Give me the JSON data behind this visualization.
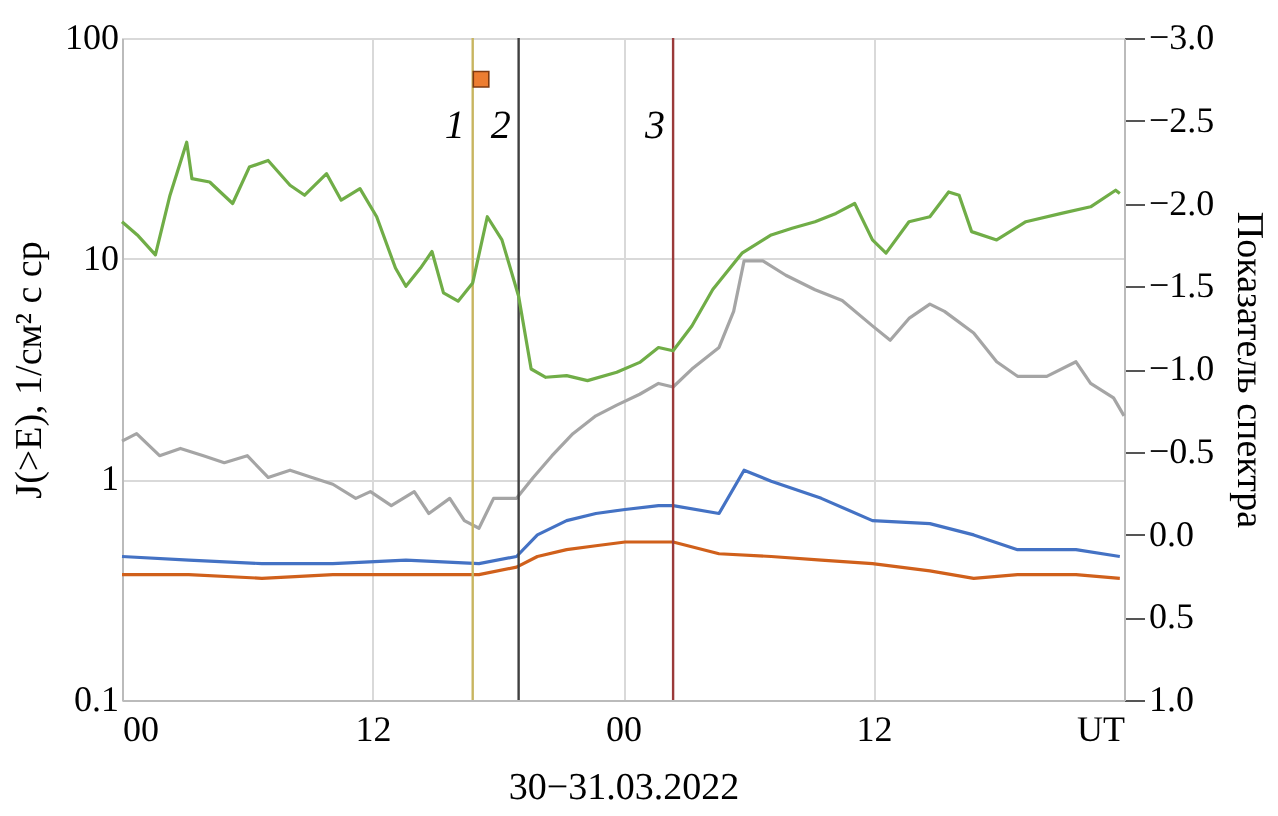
{
  "chart_data": {
    "type": "line",
    "xlabel": "30−31.03.2022",
    "ylabel": "J(>E), 1/см² с ср",
    "y2label": "Показатель спектра",
    "xlim": [
      "2022-03-30T00:00",
      "2022-04-01T00:00"
    ],
    "xticks": [
      {
        "value": "2022-03-30T00:00",
        "label": "00"
      },
      {
        "value": "2022-03-30T12:00",
        "label": "12"
      },
      {
        "value": "2022-03-31T00:00",
        "label": "00"
      },
      {
        "value": "2022-03-31T12:00",
        "label": "12"
      },
      {
        "value": "2022-04-01T00:00",
        "label": "UT"
      }
    ],
    "ylim": [
      0.1,
      100
    ],
    "yticks": [
      0.1,
      1,
      10,
      100
    ],
    "log": "y",
    "y2lim": [
      1.0,
      -3.0
    ],
    "y2ticks": [
      {
        "value": -3.0,
        "label": "−3.0"
      },
      {
        "value": -2.5,
        "label": "−2.5"
      },
      {
        "value": -2.0,
        "label": "−2.0"
      },
      {
        "value": -1.5,
        "label": "−1.5"
      },
      {
        "value": -1.0,
        "label": "−1.0"
      },
      {
        "value": -0.5,
        "label": "−0.5"
      },
      {
        "value": 0.0,
        "label": "0.0"
      },
      {
        "value": 0.5,
        "label": "0.5"
      },
      {
        "value": 1.0,
        "label": "1.0"
      }
    ],
    "grid": true,
    "line_style": "solid",
    "series": [
      {
        "color": "#70ad47",
        "axis": "y2",
        "x": [
          "2022-03-30T00:00",
          "2022-03-30T00:44",
          "2022-03-30T01:36",
          "2022-03-30T02:18",
          "2022-03-30T03:06",
          "2022-03-30T03:21",
          "2022-03-30T04:12",
          "2022-03-30T05:18",
          "2022-03-30T06:06",
          "2022-03-30T07:00",
          "2022-03-30T08:03",
          "2022-03-30T08:45",
          "2022-03-30T09:48",
          "2022-03-30T10:30",
          "2022-03-30T11:24",
          "2022-03-30T12:12",
          "2022-03-30T13:06",
          "2022-03-30T13:36",
          "2022-03-30T14:18",
          "2022-03-30T14:51",
          "2022-03-30T15:24",
          "2022-03-30T16:06",
          "2022-03-30T16:48",
          "2022-03-30T17:30",
          "2022-03-30T18:12",
          "2022-03-30T19:00",
          "2022-03-30T19:36",
          "2022-03-30T20:18",
          "2022-03-30T21:18",
          "2022-03-30T22:18",
          "2022-03-30T23:42",
          "2022-03-31T00:48",
          "2022-03-31T01:42",
          "2022-03-31T02:24",
          "2022-03-31T03:18",
          "2022-03-31T04:18",
          "2022-03-31T05:42",
          "2022-03-31T07:06",
          "2022-03-31T08:06",
          "2022-03-31T09:12",
          "2022-03-31T10:12",
          "2022-03-31T11:06",
          "2022-03-31T11:57",
          "2022-03-31T12:36",
          "2022-03-31T13:42",
          "2022-03-31T14:42",
          "2022-03-31T15:36",
          "2022-03-31T16:06",
          "2022-03-31T16:42",
          "2022-03-31T17:54",
          "2022-03-31T19:18",
          "2022-03-31T21:00",
          "2022-03-31T22:24",
          "2022-03-31T23:36",
          "2022-03-31T23:48"
        ],
        "values": [
          -1.89,
          -1.81,
          -1.69,
          -2.05,
          -2.37,
          -2.15,
          -2.13,
          -2.0,
          -2.22,
          -2.26,
          -2.11,
          -2.05,
          -2.18,
          -2.02,
          -2.09,
          -1.92,
          -1.61,
          -1.5,
          -1.61,
          -1.71,
          -1.46,
          -1.41,
          -1.52,
          -1.92,
          -1.78,
          -1.44,
          -1.0,
          -0.95,
          -0.96,
          -0.93,
          -0.98,
          -1.04,
          -1.13,
          -1.11,
          -1.26,
          -1.48,
          -1.7,
          -1.81,
          -1.85,
          -1.89,
          -1.94,
          -2.0,
          -1.78,
          -1.7,
          -1.89,
          -1.92,
          -2.07,
          -2.05,
          -1.83,
          -1.78,
          -1.89,
          -1.94,
          -1.98,
          -2.08,
          -2.06
        ]
      },
      {
        "color": "#a5a5a5",
        "x": [
          "2022-03-30T00:00",
          "2022-03-30T00:42",
          "2022-03-30T01:48",
          "2022-03-30T02:48",
          "2022-03-30T03:54",
          "2022-03-30T04:54",
          "2022-03-30T06:00",
          "2022-03-30T07:00",
          "2022-03-30T08:03",
          "2022-03-30T09:06",
          "2022-03-30T10:06",
          "2022-03-30T11:12",
          "2022-03-30T11:54",
          "2022-03-30T12:54",
          "2022-03-30T14:00",
          "2022-03-30T14:42",
          "2022-03-30T15:42",
          "2022-03-30T16:24",
          "2022-03-30T17:06",
          "2022-03-30T17:48",
          "2022-03-30T18:54",
          "2022-03-30T19:42",
          "2022-03-30T20:36",
          "2022-03-30T21:36",
          "2022-03-30T22:42",
          "2022-03-30T23:42",
          "2022-03-31T00:48",
          "2022-03-31T01:42",
          "2022-03-31T02:24",
          "2022-03-31T03:18",
          "2022-03-31T04:36",
          "2022-03-31T05:18",
          "2022-03-31T05:48",
          "2022-03-31T06:42",
          "2022-03-31T07:48",
          "2022-03-31T09:12",
          "2022-03-31T10:30",
          "2022-03-31T11:57",
          "2022-03-31T12:48",
          "2022-03-31T13:42",
          "2022-03-31T14:42",
          "2022-03-31T15:24",
          "2022-03-31T16:48",
          "2022-03-31T17:54",
          "2022-03-31T18:54",
          "2022-03-31T20:18",
          "2022-03-31T21:42",
          "2022-03-31T22:24",
          "2022-03-31T23:30",
          "2022-04-01T00:00"
        ],
        "values": [
          1.49,
          1.61,
          1.28,
          1.38,
          1.28,
          1.19,
          1.28,
          1.02,
          1.1,
          1.02,
          0.95,
          0.82,
          0.88,
          0.76,
          0.88,
          0.7,
          0.82,
          0.65,
          0.6,
          0.82,
          0.82,
          1.02,
          1.28,
          1.61,
          1.94,
          2.17,
          2.43,
          2.72,
          2.62,
          3.16,
          3.96,
          5.77,
          9.77,
          9.77,
          8.41,
          7.23,
          6.46,
          4.96,
          4.27,
          5.36,
          6.22,
          5.77,
          4.6,
          3.41,
          2.93,
          2.93,
          3.41,
          2.72,
          2.34,
          1.94
        ]
      },
      {
        "color": "#4472c4",
        "x": [
          "2022-03-30T00:00",
          "2022-03-30T03:12",
          "2022-03-30T06:42",
          "2022-03-30T10:06",
          "2022-03-30T13:36",
          "2022-03-30T17:06",
          "2022-03-30T18:54",
          "2022-03-30T19:54",
          "2022-03-30T21:18",
          "2022-03-30T22:42",
          "2022-03-31T00:06",
          "2022-03-31T01:42",
          "2022-03-31T02:24",
          "2022-03-31T04:36",
          "2022-03-31T05:48",
          "2022-03-31T07:06",
          "2022-03-31T09:30",
          "2022-03-31T11:57",
          "2022-03-31T14:42",
          "2022-03-31T16:48",
          "2022-03-31T18:54",
          "2022-03-31T21:42",
          "2022-03-31T23:48"
        ],
        "values": [
          0.447,
          0.43,
          0.415,
          0.415,
          0.43,
          0.415,
          0.447,
          0.56,
          0.65,
          0.7,
          0.73,
          0.76,
          0.76,
          0.7,
          1.1,
          0.98,
          0.82,
          0.65,
          0.63,
          0.56,
          0.48,
          0.48,
          0.447
        ]
      },
      {
        "color": "#d0601b",
        "x": [
          "2022-03-30T00:00",
          "2022-03-30T03:12",
          "2022-03-30T06:42",
          "2022-03-30T10:06",
          "2022-03-30T13:36",
          "2022-03-30T17:06",
          "2022-03-30T18:54",
          "2022-03-30T19:54",
          "2022-03-30T21:18",
          "2022-03-30T22:42",
          "2022-03-31T00:06",
          "2022-03-31T01:42",
          "2022-03-31T02:24",
          "2022-03-31T04:36",
          "2022-03-31T07:06",
          "2022-03-31T09:30",
          "2022-03-31T11:57",
          "2022-03-31T14:42",
          "2022-03-31T16:48",
          "2022-03-31T18:54",
          "2022-03-31T21:42",
          "2022-03-31T23:48"
        ],
        "values": [
          0.37,
          0.37,
          0.356,
          0.37,
          0.37,
          0.37,
          0.4,
          0.447,
          0.48,
          0.5,
          0.52,
          0.52,
          0.52,
          0.46,
          0.447,
          0.43,
          0.415,
          0.385,
          0.356,
          0.37,
          0.37,
          0.356
        ]
      },
      {
        "type": "scatter",
        "marker": "square",
        "color": "#ed7d31",
        "x": [
          "2022-03-30T17:12"
        ],
        "values": [
          65
        ]
      }
    ],
    "ref_lines": [
      {
        "axis": "x",
        "value": "2022-03-30T16:48",
        "color": "#c8b560"
      },
      {
        "axis": "x",
        "value": "2022-03-30T19:00",
        "color": "#404040"
      },
      {
        "axis": "x",
        "value": "2022-03-31T02:24",
        "color": "#9b3a3a"
      }
    ],
    "annotations": [
      {
        "text": "1",
        "x": "2022-03-30T16:48",
        "y": 40
      },
      {
        "text": "2",
        "x": "2022-03-30T19:00",
        "y": 40
      },
      {
        "text": "3",
        "x": "2022-03-31T02:24",
        "y": 40
      }
    ]
  }
}
